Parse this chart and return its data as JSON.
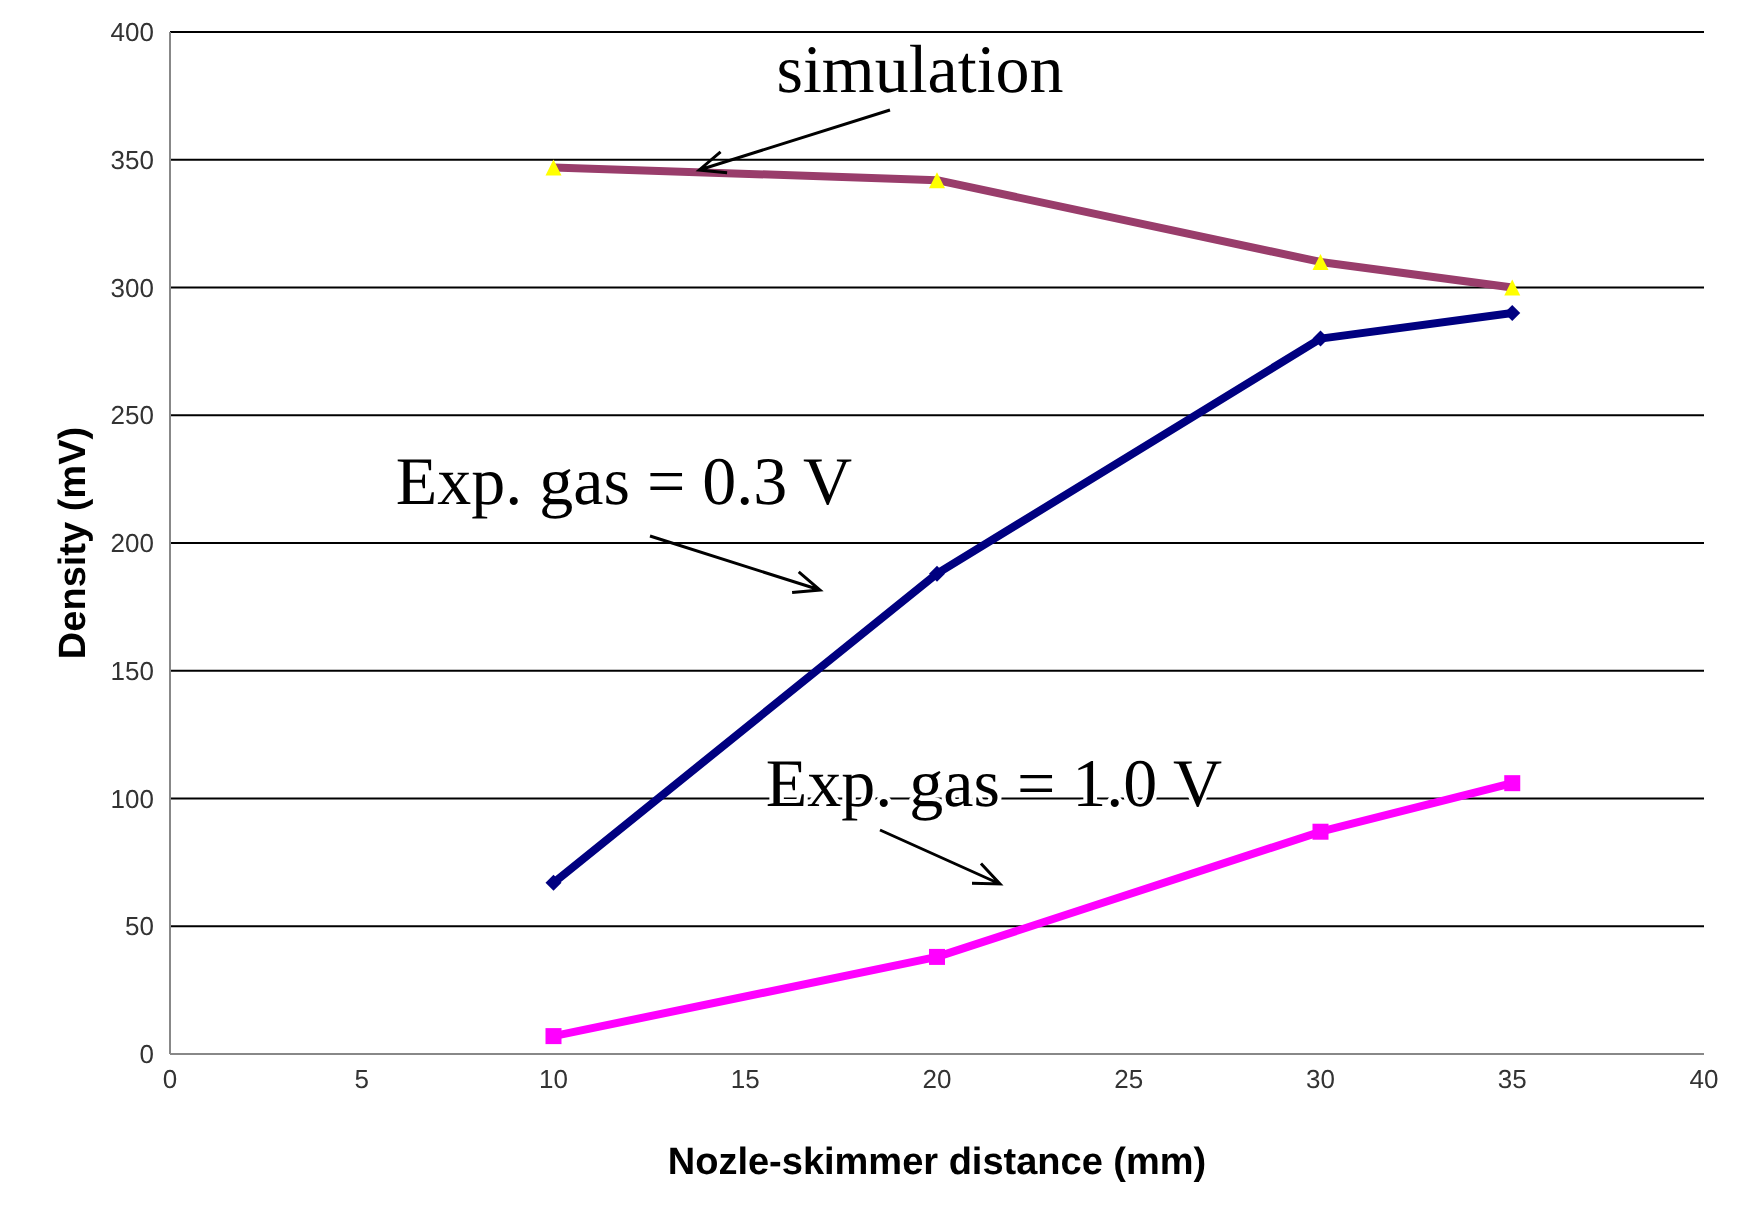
{
  "chart_data": {
    "type": "line",
    "xlabel": "Nozle-skimmer distance (mm)",
    "ylabel": "Density (mV)",
    "xlim": [
      0,
      40
    ],
    "xticks": [
      0,
      5,
      10,
      15,
      20,
      25,
      30,
      35,
      40
    ],
    "ylim": [
      0,
      400
    ],
    "yticks": [
      0,
      50,
      100,
      150,
      200,
      250,
      300,
      350,
      400
    ],
    "grid": "y",
    "legend": false,
    "line_style": "solid",
    "series": [
      {
        "x": [
          10,
          20,
          30,
          35
        ],
        "values": [
          347,
          342,
          310,
          300
        ],
        "color": "#993d6b",
        "colors": [
          "#ffff00",
          "#ffff00",
          "#ffff00",
          "#ffff00"
        ],
        "marker": "triangle"
      },
      {
        "x": [
          10,
          20,
          30,
          35
        ],
        "values": [
          67,
          188,
          280,
          290
        ],
        "color": "#000080",
        "marker": "diamond"
      },
      {
        "x": [
          10,
          20,
          30,
          35
        ],
        "values": [
          7,
          38,
          87,
          106
        ],
        "color": "#ff00ff",
        "marker": "square"
      }
    ],
    "annotations": [
      {
        "text": "simulation",
        "x": 13.8,
        "y": 346
      },
      "Exp. gas = 0.3 V",
      "Exp. gas = 1.0 V"
    ]
  }
}
